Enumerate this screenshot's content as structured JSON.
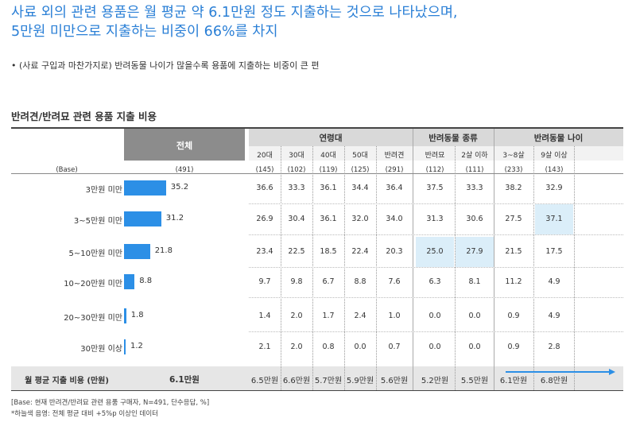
{
  "title_lines": [
    "사료 외의 관련 용품은 월 평균 약 6.1만원 정도 지출하는 것으로 나타났으며,",
    "5만원 미만으로 지출하는 비중이 66%를 차지"
  ],
  "bullet": "•  (사료 구입과 마찬가지로) 반려동물 나이가 많을수록 용품에 지출하는 비중이 큰 편",
  "subtitle": "반려견/반려묘 관련 용품 지출 비용",
  "header": {
    "total": "전체",
    "groups": [
      "연령대",
      "반려동물 종류",
      "반려동물 나이"
    ],
    "subcols": [
      "20대",
      "30대",
      "40대",
      "50대",
      "반려견",
      "반려묘",
      "2살 이하",
      "3~8살",
      "9살 이상"
    ]
  },
  "base": {
    "label": "(Base)",
    "total": "(491)",
    "values": [
      "(145)",
      "(102)",
      "(119)",
      "(125)",
      "(291)",
      "(112)",
      "(111)",
      "(233)",
      "(143)"
    ]
  },
  "rows": [
    {
      "label": "3만원 미만",
      "total": "35.2",
      "values": [
        "36.6",
        "33.3",
        "36.1",
        "34.4",
        "36.4",
        "37.5",
        "33.3",
        "38.2",
        "32.9"
      ]
    },
    {
      "label": "3~5만원 미만",
      "total": "31.2",
      "values": [
        "26.9",
        "30.4",
        "36.1",
        "32.0",
        "34.0",
        "31.3",
        "30.6",
        "27.5",
        "37.1"
      ]
    },
    {
      "label": "5~10만원 미만",
      "total": "21.8",
      "values": [
        "23.4",
        "22.5",
        "18.5",
        "22.4",
        "20.3",
        "25.0",
        "27.9",
        "21.5",
        "17.5"
      ]
    },
    {
      "label": "10~20만원 미만",
      "total": "8.8",
      "values": [
        "9.7",
        "9.8",
        "6.7",
        "8.8",
        "7.6",
        "6.3",
        "8.1",
        "11.2",
        "4.9"
      ]
    },
    {
      "label": "20~30만원 미만",
      "total": "1.8",
      "values": [
        "1.4",
        "2.0",
        "1.7",
        "2.4",
        "1.0",
        "0.0",
        "0.0",
        "0.9",
        "4.9"
      ]
    },
    {
      "label": "30만원 이상",
      "total": "1.2",
      "values": [
        "2.1",
        "2.0",
        "0.8",
        "0.0",
        "0.7",
        "0.0",
        "0.0",
        "0.9",
        "2.8"
      ]
    }
  ],
  "avg": {
    "label": "월 평균 지출 비용 (만원)",
    "total": "6.1만원",
    "values": [
      "6.5만원",
      "6.6만원",
      "5.7만원",
      "5.9만원",
      "5.6만원",
      "5.2만원",
      "5.5만원",
      "6.1만원",
      "6.8만원"
    ]
  },
  "highlights": [
    {
      "row": 1,
      "col": 8
    },
    {
      "row": 2,
      "col": 5
    },
    {
      "row": 2,
      "col": 6
    }
  ],
  "footnotes": [
    "[Base: 현재 반려견/반려묘 관련 용품 구매자, N=491, 단수응답, %]",
    "*하늘색 음영: 전체 평균 대비 +5%p 이상인 데이터"
  ],
  "colors": {
    "title": "#2a7fd6",
    "bar": "#2c8fe6",
    "highlight": "#dbeef9",
    "header_dark": "#8c8c8c",
    "header_light": "#d9d9d9",
    "avg_row": "#e6e6e6"
  }
}
